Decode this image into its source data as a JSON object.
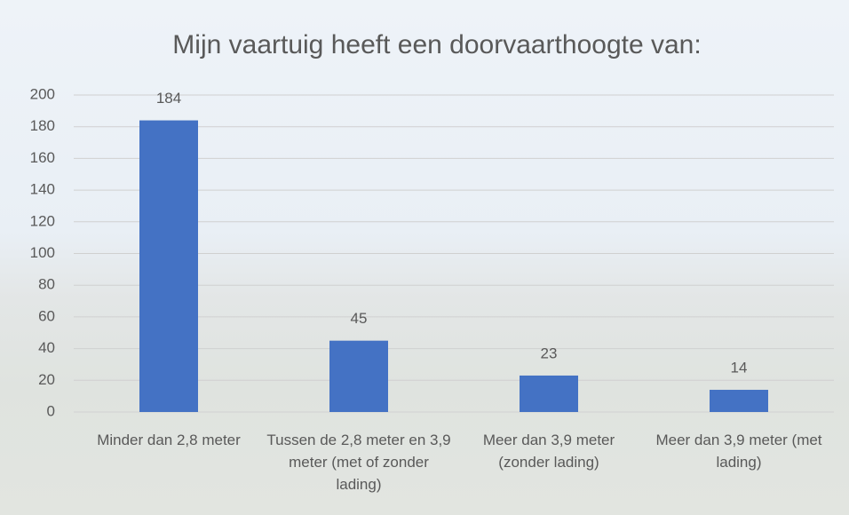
{
  "chart_data": {
    "type": "bar",
    "title": "Mijn vaartuig heeft een doorvaarthoogte van:",
    "categories": [
      "Minder dan 2,8 meter",
      "Tussen de 2,8 meter en 3,9 meter (met of zonder lading)",
      "Meer dan 3,9 meter (zonder lading)",
      "Meer dan 3,9 meter (met lading)"
    ],
    "values": [
      184,
      45,
      23,
      14
    ],
    "color": "#4472c4",
    "ylim": [
      0,
      200
    ],
    "yticks": [
      0,
      20,
      40,
      60,
      80,
      100,
      120,
      140,
      160,
      180,
      200
    ],
    "grid": true
  }
}
